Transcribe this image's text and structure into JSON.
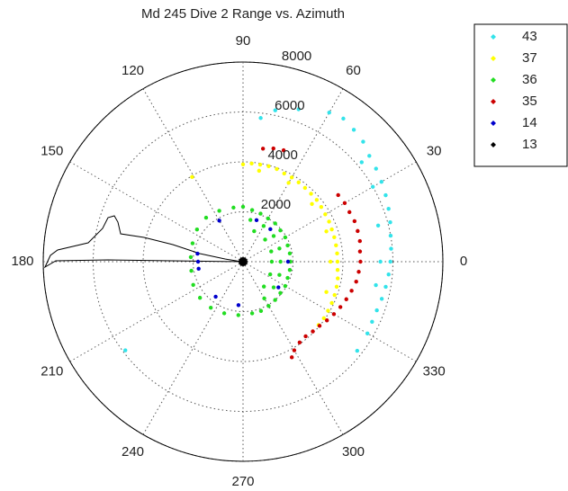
{
  "chart_data": {
    "type": "polar",
    "title": "Md 245 Dive 2 Range vs. Azimuth",
    "rlim": [
      0,
      8000
    ],
    "rticks": [
      2000,
      4000,
      6000,
      8000
    ],
    "thetaticks": [
      0,
      30,
      60,
      90,
      120,
      150,
      180,
      210,
      240,
      270,
      300,
      330
    ],
    "grid": true,
    "legend": "outside-right",
    "series": [
      {
        "name": "43",
        "color": "#33e3ea",
        "theta": [
          83,
          78,
          70,
          60,
          55,
          50,
          45,
          40,
          35,
          30,
          25,
          20,
          15,
          10,
          5,
          0,
          -5,
          -10,
          -15,
          -20,
          -25,
          -30,
          -38,
          217,
          40,
          30,
          15,
          0,
          -10
        ],
        "r": [
          5800,
          6200,
          6500,
          6900,
          7000,
          6900,
          6800,
          6600,
          6500,
          6400,
          6300,
          6200,
          6100,
          6000,
          5950,
          5900,
          5850,
          5800,
          5750,
          5700,
          5700,
          5750,
          5800,
          5900,
          6200,
          6000,
          5600,
          5500,
          5400
        ]
      },
      {
        "name": "37",
        "color": "#ffff00",
        "theta": [
          90,
          85,
          80,
          75,
          70,
          65,
          60,
          55,
          50,
          45,
          40,
          35,
          30,
          25,
          20,
          15,
          10,
          5,
          0,
          -5,
          -10,
          -15,
          -20,
          -25,
          -30,
          -35,
          -40,
          121,
          80,
          60,
          40,
          20,
          0,
          -20
        ],
        "r": [
          3900,
          3950,
          3950,
          3960,
          3950,
          3900,
          3900,
          3880,
          3860,
          3850,
          3850,
          3820,
          3800,
          3800,
          3780,
          3780,
          3780,
          3780,
          3780,
          3800,
          3850,
          3880,
          3900,
          3920,
          3930,
          3950,
          3950,
          3960,
          3700,
          3650,
          3600,
          3550,
          3500,
          3550
        ]
      },
      {
        "name": "36",
        "color": "#22dd22",
        "theta": [
          90,
          80,
          70,
          60,
          50,
          40,
          30,
          20,
          10,
          0,
          -10,
          -20,
          -30,
          -40,
          -50,
          -60,
          -70,
          80,
          60,
          40,
          20,
          0,
          -20,
          -40,
          -60,
          70,
          45,
          20,
          0,
          -25,
          -50,
          100,
          115,
          130,
          145,
          160,
          175,
          190,
          205,
          220,
          235,
          250,
          265,
          280
        ],
        "r": [
          2200,
          2100,
          2050,
          2000,
          2000,
          1950,
          1950,
          1900,
          1900,
          1900,
          1900,
          1900,
          1950,
          1950,
          2000,
          2050,
          2100,
          1700,
          1650,
          1600,
          1550,
          1500,
          1550,
          1600,
          1700,
          1300,
          1250,
          1200,
          1150,
          1200,
          1300,
          2200,
          2250,
          2300,
          2250,
          2150,
          2100,
          2100,
          2200,
          2250,
          2250,
          2200,
          2150,
          2100
        ]
      },
      {
        "name": "35",
        "color": "#cc0000",
        "theta": [
          80,
          75,
          70,
          35,
          30,
          25,
          20,
          15,
          10,
          5,
          0,
          -5,
          -10,
          -15,
          -20,
          -25,
          -30,
          -35,
          -40,
          -45,
          -50,
          -55,
          -60,
          -63
        ],
        "r": [
          4600,
          4700,
          4750,
          4650,
          4700,
          4700,
          4750,
          4750,
          4750,
          4700,
          4700,
          4650,
          4600,
          4500,
          4400,
          4300,
          4200,
          4100,
          4000,
          3950,
          3900,
          3950,
          4100,
          4300
        ]
      },
      {
        "name": "14",
        "color": "#0000cc",
        "theta": [
          72,
          50,
          0,
          -36,
          264,
          232,
          189,
          180,
          170,
          120
        ],
        "r": [
          1750,
          1700,
          1800,
          1750,
          1750,
          1780,
          1800,
          1800,
          1850,
          1900
        ]
      },
      {
        "name": "13",
        "color": "#000000",
        "theta": [
          0
        ],
        "r": [
          0
        ]
      }
    ]
  }
}
